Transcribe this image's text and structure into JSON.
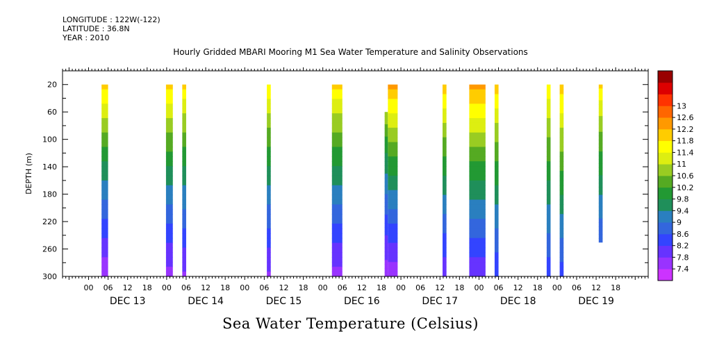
{
  "meta": {
    "longitude": "LONGITUDE : 122W(-122)",
    "latitude": "LATITUDE : 36.8N",
    "year": "YEAR : 2010"
  },
  "chart_data": {
    "type": "heatmap",
    "title": "Hourly Gridded MBARI Mooring M1 Sea Water Temperature and Salinity Observations",
    "footer_label": "Sea Water Temperature (Celsius)",
    "ylabel": "DEPTH (m)",
    "ylim": [
      300,
      0
    ],
    "yticks": [
      20,
      60,
      100,
      140,
      180,
      220,
      260,
      300
    ],
    "x_hour_range": [
      -8,
      172
    ],
    "x_tick_labels": [
      "00",
      "06",
      "12",
      "18",
      "00",
      "06",
      "12",
      "18",
      "00",
      "06",
      "12",
      "18",
      "00",
      "06",
      "12",
      "18",
      "00",
      "06",
      "12",
      "18",
      "00",
      "06",
      "12",
      "18",
      "00",
      "06",
      "12",
      "18"
    ],
    "day_labels": [
      "DEC 13",
      "DEC 14",
      "DEC 15",
      "DEC 16",
      "DEC 17",
      "DEC 18",
      "DEC 19"
    ],
    "colorbar": {
      "levels": [
        7.4,
        7.8,
        8.2,
        8.6,
        9,
        9.4,
        9.8,
        10.2,
        10.6,
        11,
        11.4,
        11.8,
        12.2,
        12.6,
        13
      ],
      "labels": [
        "7.4",
        "7.8",
        "8.2",
        "8.6",
        "9",
        "9.4",
        "9.8",
        "10.2",
        "10.6",
        "11",
        "11.4",
        "11.8",
        "12.2",
        "12.6",
        "13"
      ],
      "colors": [
        "#cc33ff",
        "#9933ff",
        "#6633ff",
        "#3344ff",
        "#3366dd",
        "#2a7fbf",
        "#1f8f5a",
        "#229933",
        "#55aa22",
        "#99cc22",
        "#ddee11",
        "#ffff00",
        "#ffcc00",
        "#ff9900",
        "#ff6600",
        "#ff3300",
        "#dd0000",
        "#990000"
      ]
    },
    "columns": [
      {
        "start_hour": 4.0,
        "end_hour": 6.0,
        "top_depth": 20,
        "bottom_depth": 300,
        "top_temp": 12.1,
        "bottom_temp": 7.4
      },
      {
        "start_hour": 23.8,
        "end_hour": 25.9,
        "top_depth": 20,
        "bottom_depth": 300,
        "top_temp": 12.1,
        "bottom_temp": 7.6
      },
      {
        "start_hour": 28.8,
        "end_hour": 30.0,
        "top_depth": 20,
        "bottom_depth": 300,
        "top_temp": 12.0,
        "bottom_temp": 7.7
      },
      {
        "start_hour": 54.8,
        "end_hour": 56.0,
        "top_depth": 20,
        "bottom_depth": 300,
        "top_temp": 11.9,
        "bottom_temp": 7.7
      },
      {
        "start_hour": 74.8,
        "end_hour": 78.0,
        "top_depth": 20,
        "bottom_depth": 300,
        "top_temp": 12.0,
        "bottom_temp": 7.6
      },
      {
        "start_hour": 91.0,
        "end_hour": 92.0,
        "top_depth": 60,
        "bottom_depth": 300,
        "top_temp": 11.0,
        "bottom_temp": 7.5
      },
      {
        "start_hour": 92.0,
        "end_hour": 95.0,
        "top_depth": 20,
        "bottom_depth": 300,
        "top_temp": 12.5,
        "bottom_temp": 7.5
      },
      {
        "start_hour": 108.8,
        "end_hour": 110.0,
        "top_depth": 20,
        "bottom_depth": 300,
        "top_temp": 12.2,
        "bottom_temp": 7.8
      },
      {
        "start_hour": 117.0,
        "end_hour": 122.0,
        "top_depth": 20,
        "bottom_depth": 300,
        "top_temp": 12.5,
        "bottom_temp": 7.8
      },
      {
        "start_hour": 124.8,
        "end_hour": 126.0,
        "top_depth": 20,
        "bottom_depth": 300,
        "top_temp": 12.1,
        "bottom_temp": 8.2
      },
      {
        "start_hour": 140.8,
        "end_hour": 142.0,
        "top_depth": 20,
        "bottom_depth": 300,
        "top_temp": 11.9,
        "bottom_temp": 8.3
      },
      {
        "start_hour": 144.8,
        "end_hour": 146.0,
        "top_depth": 20,
        "bottom_depth": 300,
        "top_temp": 12.2,
        "bottom_temp": 8.4
      },
      {
        "start_hour": 156.8,
        "end_hour": 158.0,
        "top_depth": 20,
        "bottom_depth": 250,
        "top_temp": 11.9,
        "bottom_temp": 8.6
      }
    ]
  }
}
